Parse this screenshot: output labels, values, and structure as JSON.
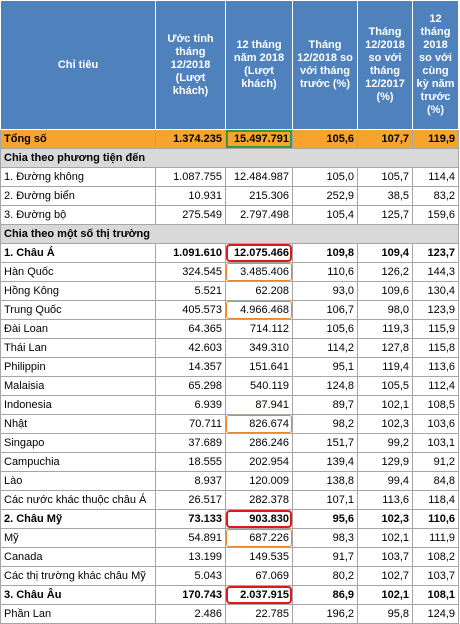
{
  "table": {
    "header": [
      "Chỉ tiêu",
      "Ước tính tháng 12/2018 (Lượt khách)",
      "12 tháng năm 2018 (Lượt khách)",
      "Tháng 12/2018 so với tháng trước (%)",
      "Tháng 12/2018 so với tháng 12/2017 (%)",
      "12 tháng 2018 so với cùng kỳ năm trước (%)"
    ],
    "rows": [
      [
        "Tổng số",
        "1.374.235",
        "15.497.791",
        "105,6",
        "107,7",
        "119,9"
      ],
      [
        "Chia theo phương tiện đến"
      ],
      [
        "1. Đường không",
        "1.087.755",
        "12.484.987",
        "105,0",
        "105,7",
        "114,4"
      ],
      [
        "2. Đường biển",
        "10.931",
        "215.306",
        "252,9",
        "38,5",
        "83,2"
      ],
      [
        "3. Đường bộ",
        "275.549",
        "2.797.498",
        "105,4",
        "125,7",
        "159,6"
      ],
      [
        "Chia theo một số thị trường"
      ],
      [
        "1. Châu Á",
        "1.091.610",
        "12.075.466",
        "109,8",
        "109,4",
        "123,7"
      ],
      [
        "Hàn Quốc",
        "324.545",
        "3.485.406",
        "110,6",
        "126,2",
        "144,3"
      ],
      [
        "Hồng Kông",
        "5.521",
        "62.208",
        "93,0",
        "109,6",
        "130,4"
      ],
      [
        "Trung Quốc",
        "405.573",
        "4.966.468",
        "106,7",
        "98,0",
        "123,9"
      ],
      [
        "Đài Loan",
        "64.365",
        "714.112",
        "105,6",
        "119,3",
        "115,9"
      ],
      [
        "Thái Lan",
        "42.603",
        "349.310",
        "114,2",
        "127,8",
        "115,8"
      ],
      [
        "Philippin",
        "14.357",
        "151.641",
        "95,1",
        "119,4",
        "113,6"
      ],
      [
        "Malaisia",
        "65.298",
        "540.119",
        "124,8",
        "105,5",
        "112,4"
      ],
      [
        "Indonesia",
        "6.939",
        "87.941",
        "89,7",
        "102,1",
        "108,5"
      ],
      [
        "Nhật",
        "70.711",
        "826.674",
        "98,2",
        "102,3",
        "103,6"
      ],
      [
        "Singapo",
        "37.689",
        "286.246",
        "151,7",
        "99,2",
        "103,1"
      ],
      [
        "Campuchia",
        "18.555",
        "202.954",
        "139,4",
        "129,9",
        "91,2"
      ],
      [
        "Lào",
        "8.937",
        "120.009",
        "138,8",
        "99,4",
        "84,8"
      ],
      [
        "Các nước khác thuộc châu Á",
        "26.517",
        "282.378",
        "107,1",
        "113,6",
        "118,4"
      ],
      [
        "2. Châu Mỹ",
        "73.133",
        "903.830",
        "95,6",
        "102,3",
        "110,6"
      ],
      [
        "Mỹ",
        "54.891",
        "687.226",
        "98,3",
        "102,1",
        "111,9"
      ],
      [
        "Canada",
        "13.199",
        "149.535",
        "91,7",
        "103,7",
        "108,2"
      ],
      [
        "Các thị trường khác châu Mỹ",
        "5.043",
        "67.069",
        "80,2",
        "102,7",
        "103,7"
      ],
      [
        "3. Châu Âu",
        "170.743",
        "2.037.915",
        "86,9",
        "102,1",
        "108,1"
      ],
      [
        "Phần Lan",
        "2.486",
        "22.785",
        "196,2",
        "95,8",
        "124,9"
      ]
    ]
  }
}
